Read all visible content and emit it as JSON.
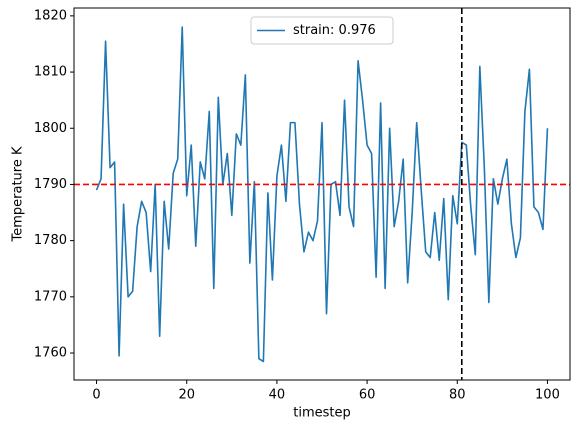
{
  "chart_data": {
    "type": "line",
    "xlabel": "timestep",
    "ylabel": "Temperature K",
    "x": [
      0,
      1,
      2,
      3,
      4,
      5,
      6,
      7,
      8,
      9,
      10,
      11,
      12,
      13,
      14,
      15,
      16,
      17,
      18,
      19,
      20,
      21,
      22,
      23,
      24,
      25,
      26,
      27,
      28,
      29,
      30,
      31,
      32,
      33,
      34,
      35,
      36,
      37,
      38,
      39,
      40,
      41,
      42,
      43,
      44,
      45,
      46,
      47,
      48,
      49,
      50,
      51,
      52,
      53,
      54,
      55,
      56,
      57,
      58,
      59,
      60,
      61,
      62,
      63,
      64,
      65,
      66,
      67,
      68,
      69,
      70,
      71,
      72,
      73,
      74,
      75,
      76,
      77,
      78,
      79,
      80,
      81,
      82,
      83,
      84,
      85,
      86,
      87,
      88,
      89,
      90,
      91,
      92,
      93,
      94,
      95,
      96,
      97,
      98,
      99,
      100
    ],
    "series": [
      {
        "name": "strain: 0.976",
        "color": "#1f77b4",
        "values": [
          1789,
          1791,
          1815.5,
          1793,
          1794,
          1759.5,
          1786.5,
          1770,
          1771,
          1782.5,
          1787,
          1785,
          1774.5,
          1790,
          1763,
          1787,
          1778.5,
          1792,
          1794.5,
          1818,
          1788,
          1797,
          1779,
          1794,
          1791,
          1803,
          1771.5,
          1805.5,
          1790,
          1795.5,
          1784.5,
          1799,
          1797,
          1809.5,
          1776,
          1790.5,
          1759,
          1758.5,
          1788.5,
          1773,
          1791.5,
          1797,
          1787,
          1801,
          1801,
          1786.5,
          1778,
          1781.5,
          1780,
          1783.5,
          1801,
          1767,
          1790,
          1790.5,
          1784.5,
          1805,
          1786,
          1782.5,
          1812,
          1805,
          1797,
          1795.5,
          1773.5,
          1804.5,
          1771.5,
          1800,
          1782.5,
          1787,
          1794.5,
          1772.5,
          1785,
          1801,
          1789,
          1778,
          1777,
          1785,
          1776.5,
          1787.5,
          1769.5,
          1788,
          1783,
          1797.5,
          1797,
          1786,
          1777.5,
          1811,
          1793,
          1769,
          1791,
          1786.5,
          1791,
          1794.5,
          1783,
          1777,
          1780.5,
          1803,
          1810.5,
          1786,
          1785,
          1782,
          1800
        ]
      }
    ],
    "reference_lines": [
      {
        "axis": "y",
        "value": 1790,
        "color": "#ff0000"
      },
      {
        "axis": "x",
        "value": 81,
        "color": "#000000"
      }
    ],
    "xlim": [
      -5,
      105
    ],
    "xticks": [
      0,
      20,
      40,
      60,
      80,
      100
    ],
    "ylim": [
      1755.2,
      1821.4
    ],
    "yticks": [
      1760,
      1770,
      1780,
      1790,
      1800,
      1810,
      1820
    ],
    "legend": "upper center",
    "grid": false
  }
}
